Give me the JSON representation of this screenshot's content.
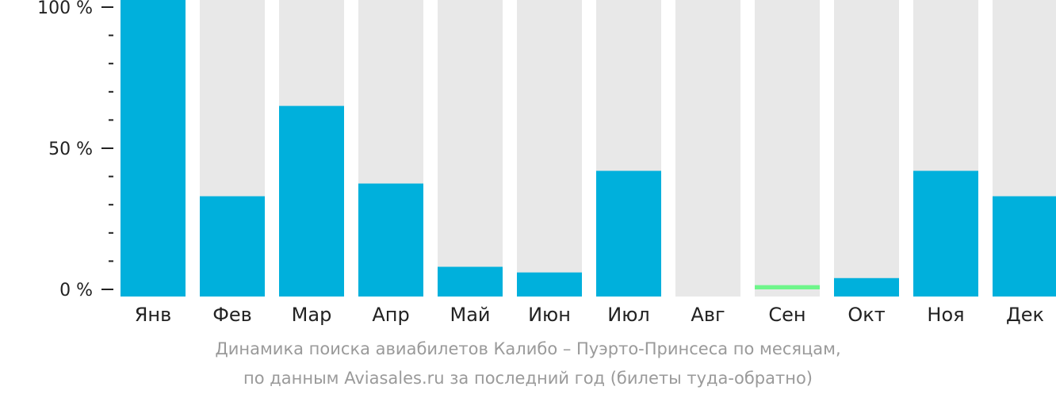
{
  "chart_data": {
    "type": "bar",
    "categories": [
      "Янв",
      "Фев",
      "Мар",
      "Апр",
      "Май",
      "Июн",
      "Июл",
      "Авг",
      "Сен",
      "Окт",
      "Ноя",
      "Дек"
    ],
    "values": [
      100,
      33,
      65,
      37.5,
      8,
      6,
      42,
      0,
      1.5,
      4,
      42,
      33
    ],
    "ylim": [
      0,
      100
    ],
    "yticks": [
      "0 %",
      "50 %",
      "100 %"
    ],
    "highlight_index": 8,
    "title": "",
    "xlabel": "",
    "ylabel": ""
  },
  "colors": {
    "bar": "#00b0dc",
    "highlight": "#6ef58a",
    "track": "#e8e8e8",
    "axis": "#222222"
  },
  "caption": {
    "line1": "Динамика поиска авиабилетов Калибо – Пуэрто-Принсеса по месяцам,",
    "line2": "по данным Aviasales.ru за последний год (билеты туда-обратно)"
  }
}
